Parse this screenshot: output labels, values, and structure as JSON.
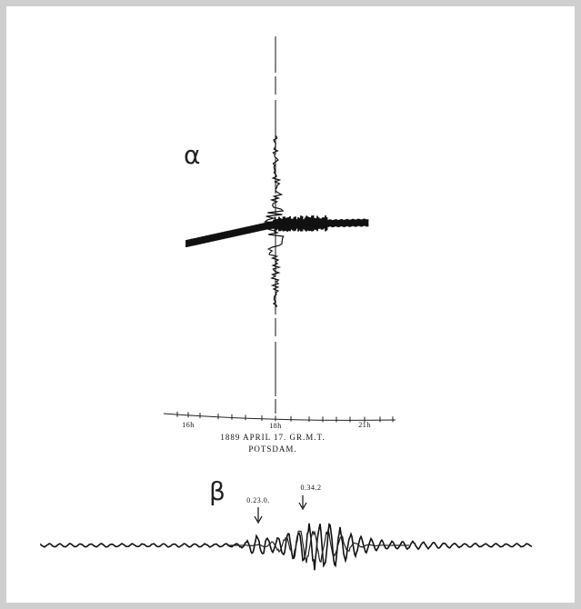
{
  "figure": {
    "alpha": {
      "label": "α",
      "axis_ticks": [
        "16h",
        "18h",
        "21h"
      ],
      "caption": [
        "1889 APRIL 17. GR.M.T.",
        "POTSDAM."
      ]
    },
    "beta": {
      "label": "β",
      "markers": [
        "0.23.0.",
        "0.34.2"
      ]
    }
  }
}
